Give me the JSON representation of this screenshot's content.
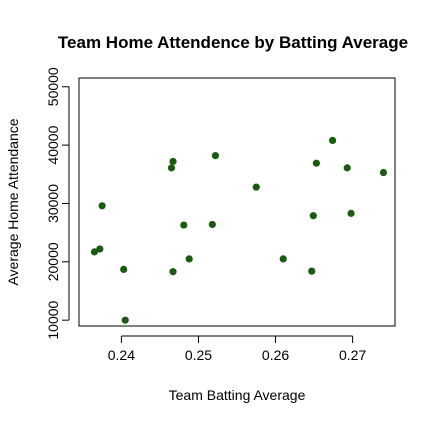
{
  "chart_data": {
    "type": "scatter",
    "title": "Team Home Attendence by Batting Average",
    "xlabel": "Team Batting Average",
    "ylabel": "Average Home Attendance",
    "xlim": [
      0.2345,
      0.2755
    ],
    "ylim": [
      9000,
      51500
    ],
    "xticks": [
      0.24,
      0.25,
      0.26,
      0.27
    ],
    "xtick_labels": [
      "0.24",
      "0.25",
      "0.26",
      "0.27"
    ],
    "yticks": [
      10000,
      20000,
      30000,
      40000,
      50000
    ],
    "ytick_labels": [
      "10000",
      "20000",
      "30000",
      "40000",
      "50000"
    ],
    "grid": false,
    "point_color": "#1a5c0f",
    "points": [
      {
        "x": 0.2365,
        "y": 21700
      },
      {
        "x": 0.2372,
        "y": 22200
      },
      {
        "x": 0.2375,
        "y": 29600
      },
      {
        "x": 0.2403,
        "y": 18700
      },
      {
        "x": 0.2405,
        "y": 10000
      },
      {
        "x": 0.2465,
        "y": 36100
      },
      {
        "x": 0.2467,
        "y": 37200
      },
      {
        "x": 0.2467,
        "y": 18300
      },
      {
        "x": 0.2481,
        "y": 26300
      },
      {
        "x": 0.2488,
        "y": 20500
      },
      {
        "x": 0.2518,
        "y": 26400
      },
      {
        "x": 0.2522,
        "y": 38200
      },
      {
        "x": 0.2575,
        "y": 32800
      },
      {
        "x": 0.261,
        "y": 20500
      },
      {
        "x": 0.2647,
        "y": 18400
      },
      {
        "x": 0.2649,
        "y": 27900
      },
      {
        "x": 0.2653,
        "y": 36900
      },
      {
        "x": 0.2674,
        "y": 40800
      },
      {
        "x": 0.2693,
        "y": 36100
      },
      {
        "x": 0.2698,
        "y": 28300
      },
      {
        "x": 0.274,
        "y": 35300
      }
    ]
  }
}
